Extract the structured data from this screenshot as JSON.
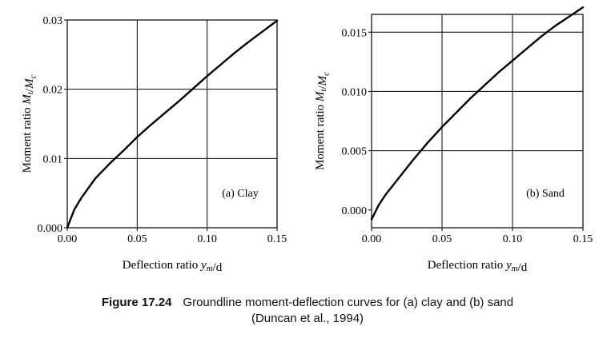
{
  "chart_data": [
    {
      "type": "line",
      "xlabel": "Deflection ratio y_m/d",
      "ylabel": "Moment ratio M_t/M_c",
      "xlim": [
        0,
        0.15
      ],
      "ylim": [
        0,
        0.03
      ],
      "xticks": [
        "0.00",
        "0.05",
        "0.10",
        "0.15"
      ],
      "yticks": [
        "0.000",
        "0.01",
        "0.02",
        "0.03"
      ],
      "grid": true,
      "annotation": "(a) Clay",
      "x": [
        0.0,
        0.005,
        0.01,
        0.02,
        0.03,
        0.04,
        0.05,
        0.06,
        0.07,
        0.08,
        0.09,
        0.1,
        0.11,
        0.12,
        0.13,
        0.14,
        0.15
      ],
      "y": [
        0.0,
        0.0026,
        0.0043,
        0.0071,
        0.0092,
        0.0111,
        0.0131,
        0.0149,
        0.0166,
        0.0183,
        0.0201,
        0.0219,
        0.0236,
        0.0253,
        0.0269,
        0.0284,
        0.0299
      ]
    },
    {
      "type": "line",
      "xlabel": "Deflection ratio y_m/d",
      "ylabel": "Moment ratio M_t/M_c",
      "xlim": [
        0,
        0.15
      ],
      "ylim": [
        -0.0015,
        0.0165
      ],
      "xticks": [
        "0.00",
        "0.05",
        "0.10",
        "0.15"
      ],
      "yticks": [
        "0.000",
        "0.005",
        "0.010",
        "0.015"
      ],
      "grid": true,
      "annotation": "(b) Sand",
      "x": [
        0.0,
        0.005,
        0.01,
        0.02,
        0.03,
        0.04,
        0.05,
        0.06,
        0.07,
        0.08,
        0.09,
        0.1,
        0.11,
        0.12,
        0.13,
        0.14,
        0.15
      ],
      "y": [
        -0.0008,
        0.0004,
        0.0013,
        0.0028,
        0.0043,
        0.0057,
        0.007,
        0.0082,
        0.0094,
        0.0105,
        0.0116,
        0.0126,
        0.0136,
        0.0146,
        0.0155,
        0.0163,
        0.0171
      ]
    }
  ],
  "caption": {
    "number": "Figure 17.24",
    "line1": "Groundline moment-deflection curves for (a) clay and (b) sand",
    "line2": "(Duncan et al., 1994)"
  }
}
